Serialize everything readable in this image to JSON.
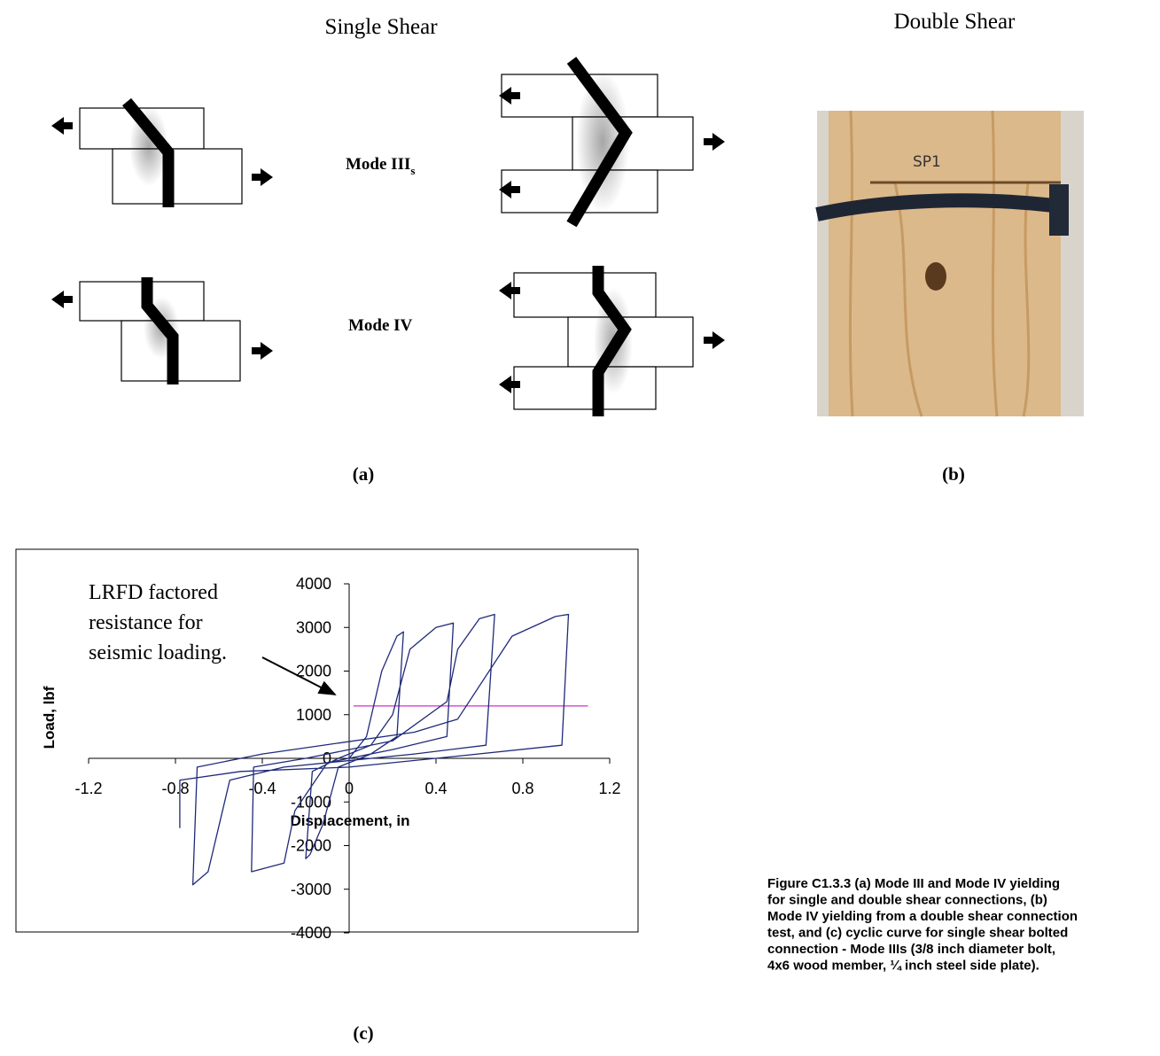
{
  "figure": {
    "single_shear_title": "Single Shear",
    "double_shear_title": "Double Shear",
    "mode_3_label": "Mode III",
    "mode_3_subscript": "s",
    "mode_4_label": "Mode IV",
    "photo_marking": "SP1",
    "label_a": "(a)",
    "label_b": "(b)",
    "label_c": "(c)",
    "caption_lines": [
      "Figure C1.3.3  (a) Mode III and Mode IV yielding",
      "for single and double shear connections, (b)",
      "Mode IV yielding from a double shear connection",
      "test, and (c) cyclic curve for single shear bolted",
      "connection - Mode IIIs (3/8 inch diameter bolt,",
      "4x6 wood member, ¼ inch steel side plate)."
    ]
  },
  "chart_data": {
    "type": "line",
    "xlabel": "Displacement, in",
    "ylabel": "Load, lbf",
    "annotation_lines": [
      "LRFD factored resistance for",
      "seismic loading."
    ],
    "annotation_first_lines": [
      "LRFD factored",
      "resistance for",
      "seismic loading."
    ],
    "xlim": [
      -1.2,
      1.2
    ],
    "ylim": [
      -4000,
      4000
    ],
    "xticks": [
      -1.2,
      -0.8,
      -0.4,
      0,
      0.4,
      0.8,
      1.2
    ],
    "yticks": [
      -4000,
      -3000,
      -2000,
      -1000,
      0,
      1000,
      2000,
      3000,
      4000
    ],
    "x": [
      0,
      0.08,
      0.15,
      0.22,
      0.25,
      0.22,
      0.1,
      -0.05,
      -0.12,
      -0.18,
      -0.2,
      -0.17,
      -0.05,
      0.1,
      0.2,
      0.28,
      0.4,
      0.48,
      0.45,
      0.2,
      -0.1,
      -0.25,
      -0.3,
      -0.45,
      -0.44,
      -0.2,
      0.2,
      0.45,
      0.5,
      0.6,
      0.67,
      0.63,
      0.3,
      -0.3,
      -0.55,
      -0.65,
      -0.72,
      -0.7,
      -0.4,
      0.3,
      0.5,
      0.75,
      0.95,
      1.01,
      0.98,
      0.5,
      0,
      -0.5,
      -0.78,
      -0.78
    ],
    "series": [
      {
        "color": "#1f2a7a",
        "values": [
          0,
          500,
          2000,
          2800,
          2900,
          500,
          100,
          -200,
          -1500,
          -2200,
          -2300,
          -300,
          0,
          300,
          1000,
          2500,
          3000,
          3100,
          500,
          200,
          -100,
          -1200,
          -2400,
          -2600,
          -200,
          0,
          400,
          1300,
          2500,
          3200,
          3300,
          300,
          100,
          -200,
          -500,
          -2600,
          -2900,
          -200,
          100,
          600,
          900,
          2800,
          3250,
          3300,
          300,
          50,
          -200,
          -300,
          -500,
          -1600
        ]
      }
    ],
    "reference_line": {
      "value": 1200,
      "xrange": [
        0.02,
        1.1
      ],
      "color": "#cc33cc"
    }
  }
}
